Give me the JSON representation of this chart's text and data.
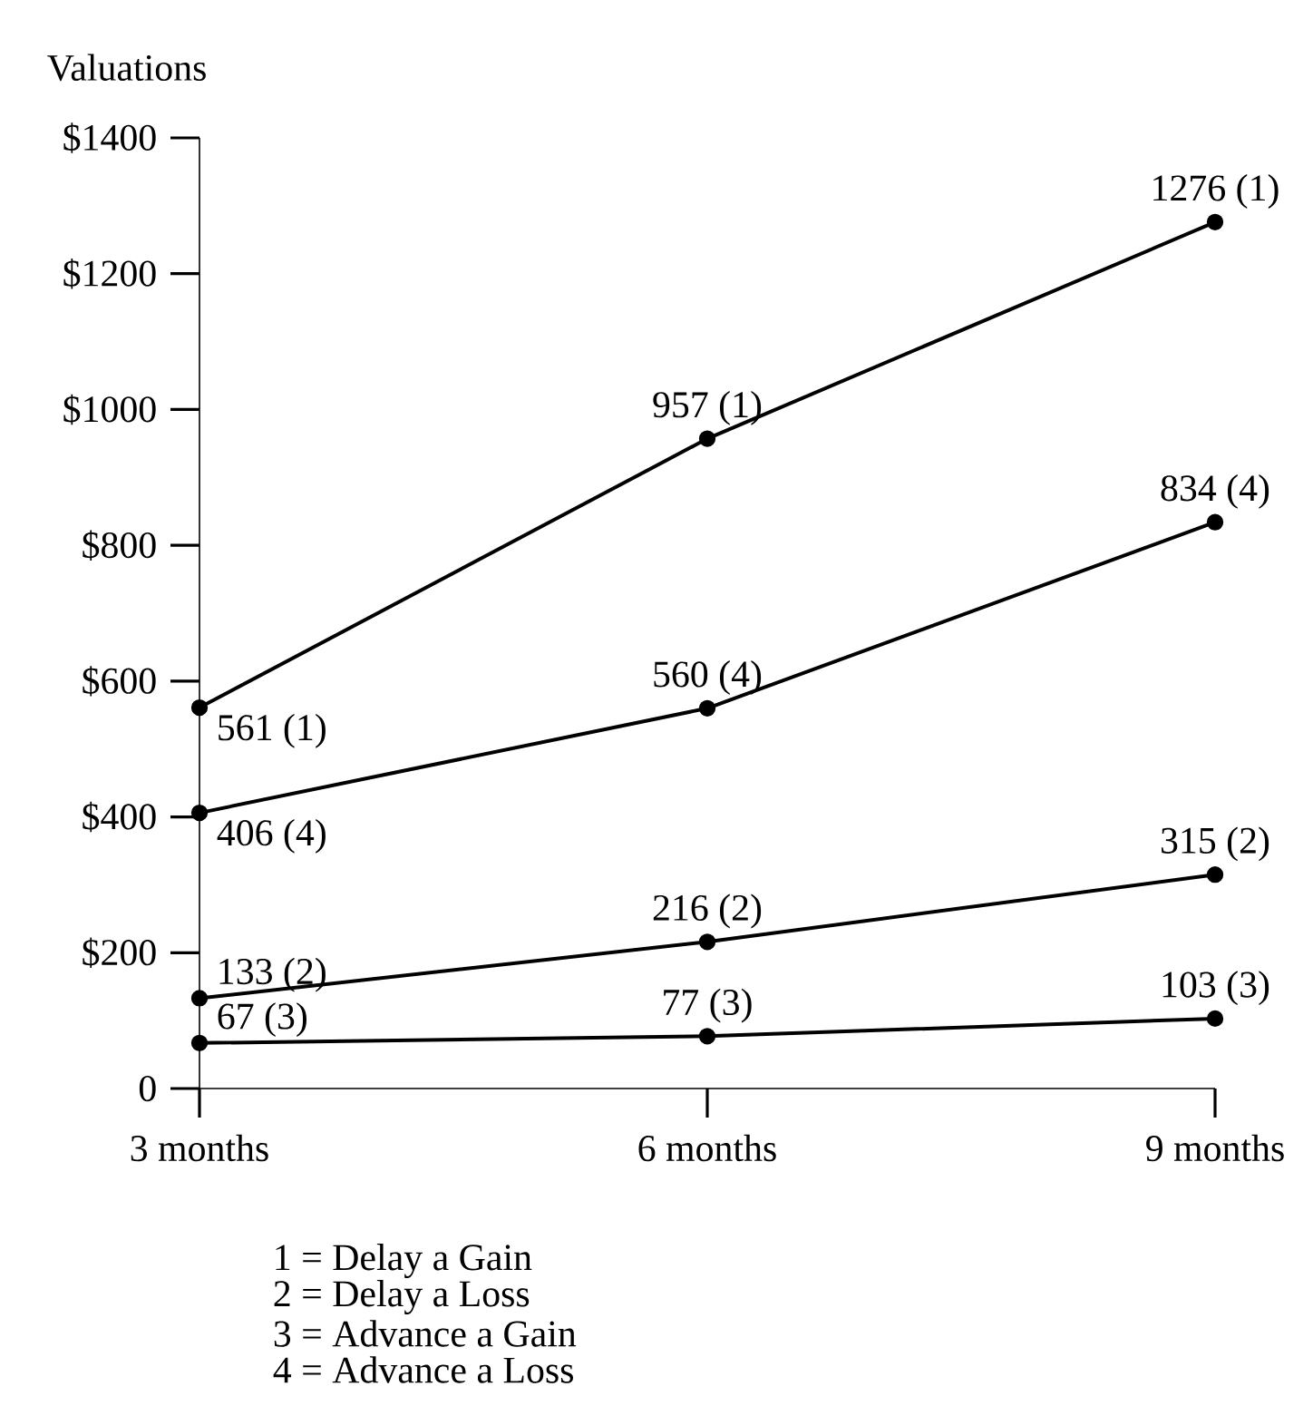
{
  "chart_data": {
    "type": "line",
    "ylabel": "Valuations",
    "categories": [
      "3 months",
      "6 months",
      "9 months"
    ],
    "ylim": [
      0,
      1400
    ],
    "yticks": [
      0,
      {
        "value": 200,
        "label": "$200"
      },
      {
        "value": 400,
        "label": "$400"
      },
      {
        "value": 600,
        "label": "$600"
      },
      {
        "value": 800,
        "label": "$800"
      },
      {
        "value": 1000,
        "label": "$1000"
      },
      {
        "value": 1200,
        "label": "$1200"
      },
      {
        "value": 1400,
        "label": "$1400"
      }
    ],
    "marker": "circle",
    "line_style": "solid",
    "series": [
      {
        "color": "#000000",
        "values": [
          561,
          957,
          1276
        ],
        "value_labels": [
          "561 (1)",
          "957 (1)",
          "1276 (1)"
        ]
      },
      {
        "color": "#000000",
        "values": [
          406,
          560,
          834
        ],
        "value_labels": [
          "406 (4)",
          "560 (4)",
          "834 (4)"
        ]
      },
      {
        "color": "#000000",
        "values": [
          133,
          216,
          315
        ],
        "value_labels": [
          "133 (2)",
          "216 (2)",
          "315 (2)"
        ]
      },
      {
        "color": "#000000",
        "values": [
          67,
          77,
          103
        ],
        "value_labels": [
          "67 (3)",
          "77 (3)",
          "103 (3)"
        ]
      }
    ],
    "annotations": [
      "1 = Delay a Gain",
      "2 = Delay a Loss",
      "3 = Advance a Gain",
      "4 = Advance a Loss"
    ]
  }
}
